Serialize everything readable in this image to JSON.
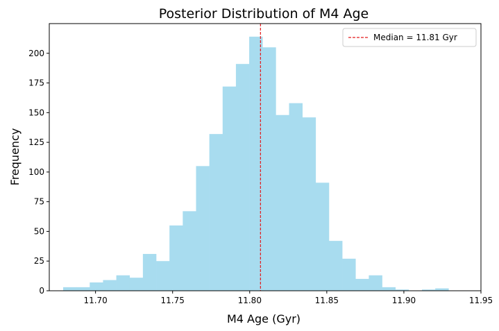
{
  "chart_data": {
    "type": "bar",
    "title": "Posterior Distribution of M4 Age",
    "xlabel": "M4 Age (Gyr)",
    "ylabel": "Frequency",
    "xlim": [
      11.67,
      11.95
    ],
    "ylim": [
      0,
      225
    ],
    "xticks": [
      "11.70",
      "11.75",
      "11.80",
      "11.85",
      "11.90",
      "11.95"
    ],
    "yticks": [
      "0",
      "25",
      "50",
      "75",
      "100",
      "125",
      "150",
      "175",
      "200"
    ],
    "bin_start": 11.679,
    "bin_width": 0.00862,
    "values": [
      3,
      3,
      7,
      9,
      13,
      11,
      31,
      25,
      55,
      67,
      105,
      132,
      172,
      191,
      214,
      205,
      148,
      158,
      146,
      91,
      42,
      27,
      10,
      13,
      3,
      1,
      0,
      1,
      2
    ],
    "bar_color": "#a8dcef",
    "median": 11.807,
    "median_color": "#e31a1c",
    "legend": {
      "label": "Median = 11.81 Gyr",
      "placement": "top-right"
    },
    "grid": false
  }
}
